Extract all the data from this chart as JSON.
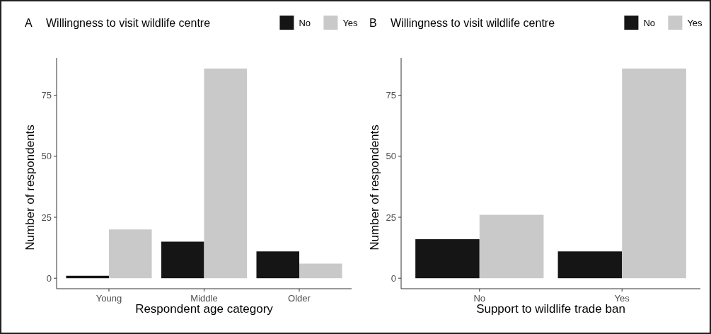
{
  "chart_data": [
    {
      "type": "bar",
      "title": "A",
      "legend_title": "Willingness to visit wildlife centre",
      "legend": "top",
      "xlabel": "Respondent age category",
      "ylabel": "Number of respondents",
      "categories": [
        "Young",
        "Middle",
        "Older"
      ],
      "series": [
        {
          "name": "No",
          "color": "#151515",
          "values": [
            1,
            15,
            11
          ]
        },
        {
          "name": "Yes",
          "color": "#c9c9c9",
          "values": [
            20,
            86,
            6
          ]
        }
      ],
      "ylim": [
        -4.3,
        90.3
      ],
      "yticks": [
        0,
        25,
        50,
        75
      ],
      "grid": false
    },
    {
      "type": "bar",
      "title": "B",
      "legend_title": "Willingness to visit wildlife centre",
      "legend": "top",
      "xlabel": "Support to wildlife trade ban",
      "ylabel": "Number of respondents",
      "categories": [
        "No",
        "Yes"
      ],
      "series": [
        {
          "name": "No",
          "color": "#151515",
          "values": [
            16,
            11
          ]
        },
        {
          "name": "Yes",
          "color": "#c9c9c9",
          "values": [
            26,
            86
          ]
        }
      ],
      "ylim": [
        -4.3,
        90.3
      ],
      "yticks": [
        0,
        25,
        50,
        75
      ],
      "grid": false
    }
  ]
}
